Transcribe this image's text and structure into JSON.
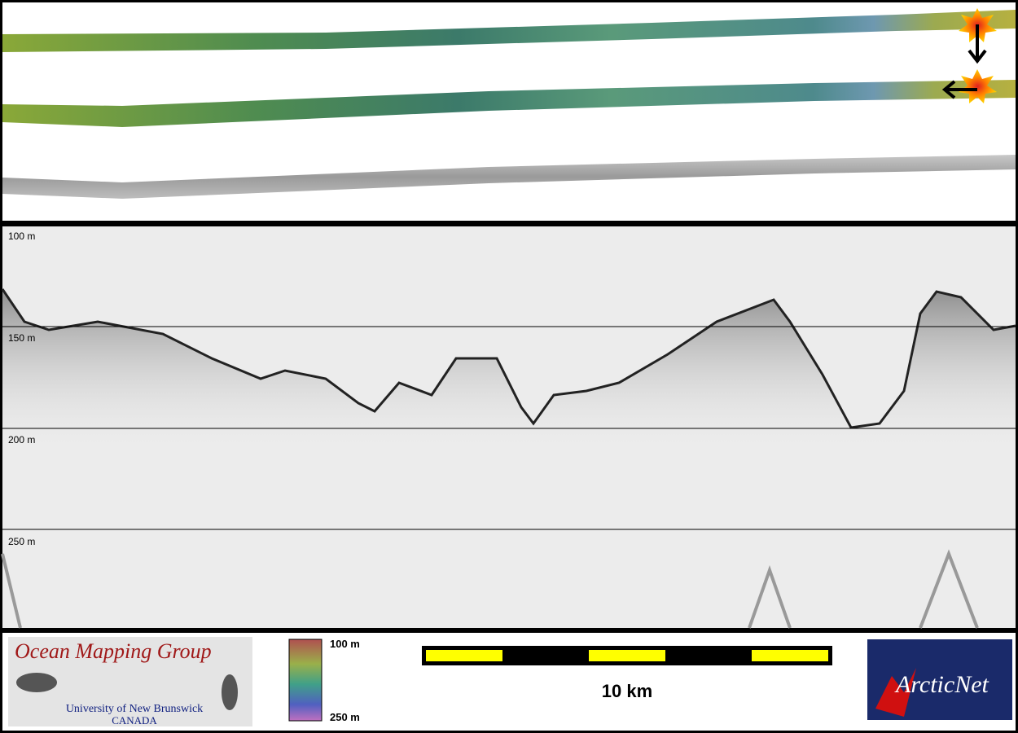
{
  "echogram": {
    "depth_labels": [
      "100 m",
      "150 m",
      "200 m",
      "250 m"
    ]
  },
  "legend": {
    "colorbar_labels": [
      "100 m",
      "250 m"
    ],
    "scale_label": "10 km"
  },
  "logos": {
    "omg_title": "Ocean Mapping Group",
    "omg_university": "University of New Brunswick",
    "omg_country": "CANADA",
    "arcticnet": "ArcticNet"
  }
}
